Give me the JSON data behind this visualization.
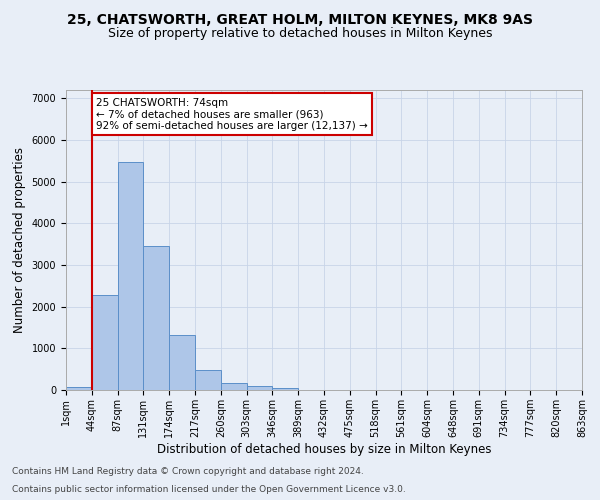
{
  "title": "25, CHATSWORTH, GREAT HOLM, MILTON KEYNES, MK8 9AS",
  "subtitle": "Size of property relative to detached houses in Milton Keynes",
  "xlabel": "Distribution of detached houses by size in Milton Keynes",
  "ylabel": "Number of detached properties",
  "footer_line1": "Contains HM Land Registry data © Crown copyright and database right 2024.",
  "footer_line2": "Contains public sector information licensed under the Open Government Licence v3.0.",
  "bar_values": [
    75,
    2280,
    5480,
    3450,
    1320,
    470,
    165,
    95,
    55,
    0,
    0,
    0,
    0,
    0,
    0,
    0,
    0,
    0,
    0,
    0
  ],
  "bin_labels": [
    "1sqm",
    "44sqm",
    "87sqm",
    "131sqm",
    "174sqm",
    "217sqm",
    "260sqm",
    "303sqm",
    "346sqm",
    "389sqm",
    "432sqm",
    "475sqm",
    "518sqm",
    "561sqm",
    "604sqm",
    "648sqm",
    "691sqm",
    "734sqm",
    "777sqm",
    "820sqm",
    "863sqm"
  ],
  "bar_color": "#aec6e8",
  "bar_edge_color": "#5b8fc9",
  "highlight_bar_index": 1,
  "highlight_line_color": "#cc0000",
  "annotation_text": "25 CHATSWORTH: 74sqm\n← 7% of detached houses are smaller (963)\n92% of semi-detached houses are larger (12,137) →",
  "annotation_box_color": "#ffffff",
  "annotation_box_edge_color": "#cc0000",
  "ylim": [
    0,
    7200
  ],
  "yticks": [
    0,
    1000,
    2000,
    3000,
    4000,
    5000,
    6000,
    7000
  ],
  "grid_color": "#c8d4e8",
  "bg_color": "#e8eef7",
  "title_fontsize": 10,
  "subtitle_fontsize": 9,
  "axis_label_fontsize": 8.5,
  "tick_fontsize": 7,
  "footer_fontsize": 6.5,
  "annotation_fontsize": 7.5
}
